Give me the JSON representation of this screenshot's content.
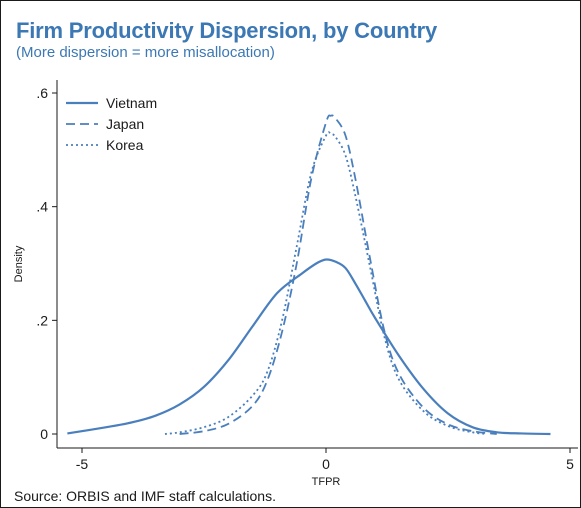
{
  "header": {
    "title": "Firm Productivity Dispersion, by Country",
    "subtitle": "(More dispersion = more misallocation)"
  },
  "footer": {
    "source": "Source: ORBIS and IMF staff calculations."
  },
  "colors": {
    "title": "#3c78b4",
    "series": "#4a7fbd",
    "axis": "#1a1a1a",
    "background": "#ffffff"
  },
  "chart_data": {
    "type": "line",
    "title": "Firm Productivity Dispersion, by Country",
    "subtitle": "(More dispersion = more misallocation)",
    "xlabel": "TFPR",
    "ylabel": "Density",
    "xlim": [
      -5.5,
      5.2
    ],
    "ylim": [
      0,
      0.6
    ],
    "x_ticks": [
      -5,
      0,
      5
    ],
    "x_tick_labels": [
      "-5",
      "0",
      "5"
    ],
    "y_ticks": [
      0,
      0.2,
      0.4,
      0.6
    ],
    "y_tick_labels": [
      "0",
      ".2",
      ".4",
      ".6"
    ],
    "grid": false,
    "legend_position": "top-left",
    "series": [
      {
        "name": "Vietnam",
        "style": "solid",
        "x": [
          -5.3,
          -4.5,
          -4.0,
          -3.5,
          -3.0,
          -2.5,
          -2.0,
          -1.5,
          -1.0,
          -0.5,
          -0.2,
          0.0,
          0.2,
          0.4,
          0.6,
          0.8,
          1.0,
          1.5,
          2.0,
          2.5,
          3.0,
          3.5,
          4.0,
          4.6
        ],
        "y": [
          0.001,
          0.012,
          0.02,
          0.032,
          0.052,
          0.083,
          0.13,
          0.19,
          0.248,
          0.282,
          0.3,
          0.307,
          0.303,
          0.292,
          0.265,
          0.235,
          0.205,
          0.137,
          0.079,
          0.036,
          0.012,
          0.003,
          0.001,
          0.0
        ]
      },
      {
        "name": "Japan",
        "style": "dashed",
        "x": [
          -3.0,
          -2.5,
          -2.0,
          -1.5,
          -1.2,
          -0.9,
          -0.6,
          -0.3,
          0.0,
          0.1,
          0.2,
          0.4,
          0.6,
          0.9,
          1.2,
          1.5,
          2.0,
          2.5,
          3.0,
          3.5
        ],
        "y": [
          0.0,
          0.005,
          0.018,
          0.05,
          0.095,
          0.18,
          0.3,
          0.45,
          0.548,
          0.56,
          0.555,
          0.525,
          0.45,
          0.31,
          0.18,
          0.105,
          0.046,
          0.017,
          0.005,
          0.0
        ]
      },
      {
        "name": "Korea",
        "style": "dotted",
        "x": [
          -3.3,
          -3.0,
          -2.5,
          -2.0,
          -1.5,
          -1.2,
          -0.9,
          -0.6,
          -0.3,
          0.0,
          0.1,
          0.2,
          0.4,
          0.6,
          0.9,
          1.2,
          1.5,
          2.0,
          2.5,
          3.0,
          3.3
        ],
        "y": [
          0.0,
          0.003,
          0.012,
          0.03,
          0.068,
          0.11,
          0.2,
          0.33,
          0.46,
          0.525,
          0.528,
          0.522,
          0.49,
          0.42,
          0.295,
          0.17,
          0.095,
          0.04,
          0.014,
          0.003,
          0.0
        ]
      }
    ]
  }
}
